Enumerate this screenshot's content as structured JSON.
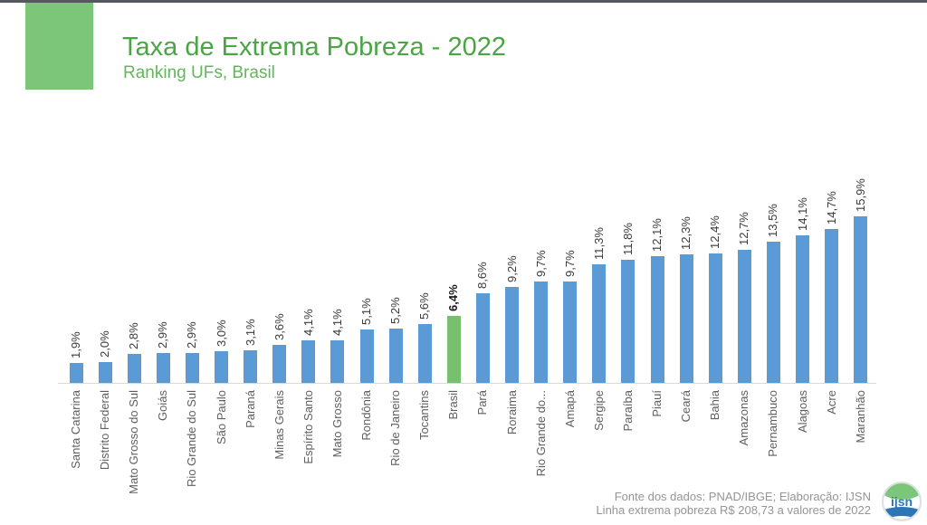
{
  "header": {
    "title": "Taxa de Extrema Pobreza - 2022",
    "subtitle": "Ranking UFs, Brasil"
  },
  "footer": {
    "line1": "Fonte dos dados: PNAD/IBGE; Elaboração: IJSN",
    "line2": "Linha extrema pobreza R$ 208,73 a valores de 2022",
    "logo_text": "ijsn"
  },
  "colors": {
    "bar_blue": "#5B9BD5",
    "bar_green": "#79BF70",
    "title_green": "#4BA446",
    "subtitle_green": "#61B75A",
    "accent_rect_green": "#7CC679",
    "top_strip_gray": "#55585C",
    "footer_gray": "#939598",
    "axis_gray": "#D9D9D9",
    "value_label_dark": "#3A3A3A",
    "category_label_gray": "#5F5F5F",
    "logo_blue": "#2E75B6"
  },
  "chart_data": {
    "type": "bar",
    "title": "Taxa de Extrema Pobreza - 2022",
    "subtitle": "Ranking UFs, Brasil",
    "unit": "%",
    "grid": false,
    "legend": "none",
    "ylim": [
      0,
      16
    ],
    "orientation": "vertical-bars-rotated-labels",
    "categories": [
      "Santa Catarina",
      "Distrito Federal",
      "Mato Grosso do Sul",
      "Goiás",
      "Rio Grande do Sul",
      "São Paulo",
      "Paraná",
      "Minas Gerais",
      "Espírito Santo",
      "Mato Grosso",
      "Rondônia",
      "Rio de Janeiro",
      "Tocantins",
      "Brasil",
      "Pará",
      "Roraima",
      "Rio Grande do...",
      "Amapá",
      "Sergipe",
      "Paraíba",
      "Piauí",
      "Ceará",
      "Bahia",
      "Amazonas",
      "Pernambuco",
      "Alagoas",
      "Acre",
      "Maranhão"
    ],
    "values": [
      1.9,
      2.0,
      2.8,
      2.9,
      2.9,
      3.0,
      3.1,
      3.6,
      4.1,
      4.1,
      5.1,
      5.2,
      5.6,
      6.4,
      8.6,
      9.2,
      9.7,
      9.7,
      11.3,
      11.8,
      12.1,
      12.3,
      12.4,
      12.7,
      13.5,
      14.1,
      14.7,
      15.9
    ],
    "value_labels": [
      "1,9%",
      "2,0%",
      "2,8%",
      "2,9%",
      "2,9%",
      "3,0%",
      "3,1%",
      "3,6%",
      "4,1%",
      "4,1%",
      "5,1%",
      "5,2%",
      "5,6%",
      "6,4%",
      "8,6%",
      "9,2%",
      "9,7%",
      "9,7%",
      "11,3%",
      "11,8%",
      "12,1%",
      "12,3%",
      "12,4%",
      "12,7%",
      "13,5%",
      "14,1%",
      "14,7%",
      "15,9%"
    ],
    "highlight_category": "Brasil",
    "highlight_index": 13
  }
}
